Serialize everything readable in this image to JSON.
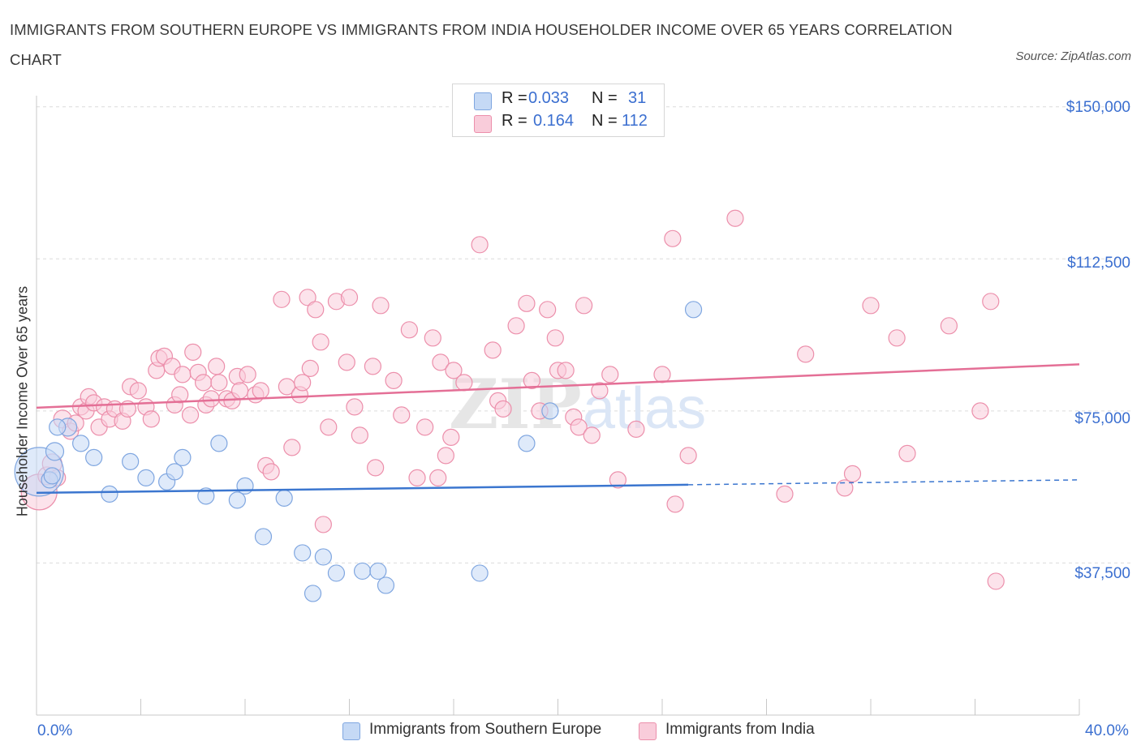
{
  "header": {
    "title": "IMMIGRANTS FROM SOUTHERN EUROPE VS IMMIGRANTS FROM INDIA HOUSEHOLDER INCOME OVER 65 YEARS CORRELATION CHART",
    "source": "Source: ZipAtlas.com"
  },
  "watermark": {
    "zip": "ZIP",
    "atlas": "atlas"
  },
  "legend_top": {
    "rows": [
      {
        "r_label": "R =",
        "r_value": "0.033",
        "n_label": "N =",
        "n_value": "31"
      },
      {
        "r_label": "R =",
        "r_value": "0.164",
        "n_label": "N =",
        "n_value": "112"
      }
    ]
  },
  "colors": {
    "series1_fill": "#c5d9f5",
    "series1_stroke": "#7fa6e0",
    "series1_line": "#3b76cf",
    "series2_fill": "#f9ccda",
    "series2_stroke": "#ec8fab",
    "series2_line": "#e46f96",
    "axis_label": "#3b6fd0",
    "grid": "#dcdcdc"
  },
  "chart_data": {
    "type": "scatter",
    "title": "IMMIGRANTS FROM SOUTHERN EUROPE VS IMMIGRANTS FROM INDIA HOUSEHOLDER INCOME OVER 65 YEARS CORRELATION CHART",
    "xlabel": "",
    "ylabel": "Householder Income Over 65 years",
    "xlim": [
      0,
      40
    ],
    "ylim": [
      0,
      150000
    ],
    "x_tick_labels": [
      "0.0%",
      "40.0%"
    ],
    "y_tick_labels": [
      "$150,000",
      "$112,500",
      "$75,000",
      "$37,500"
    ],
    "y_ticks": [
      150000,
      112500,
      75000,
      37500
    ],
    "grid": true,
    "legend_position": "bottom",
    "series": [
      {
        "name": "Immigrants from Southern Europe",
        "x": [
          0.1,
          0.7,
          1.2,
          1.7,
          2.2,
          2.8,
          3.6,
          4.2,
          5.0,
          5.3,
          5.6,
          6.5,
          7.0,
          7.7,
          8.0,
          8.7,
          9.5,
          10.2,
          10.6,
          11.0,
          11.5,
          12.5,
          13.1,
          13.4,
          17.0,
          18.8,
          19.7,
          25.2,
          0.8,
          0.5,
          0.6
        ],
        "y": [
          60000,
          65000,
          71000,
          67000,
          63500,
          54500,
          62500,
          58500,
          57500,
          60000,
          63500,
          54000,
          67000,
          53000,
          56500,
          44000,
          53500,
          40000,
          30000,
          39000,
          35000,
          35500,
          35500,
          32000,
          35000,
          67000,
          75000,
          100000,
          71000,
          58000,
          59000
        ],
        "sizes": [
          30,
          11,
          11,
          10,
          10,
          10,
          10,
          10,
          10,
          10,
          10,
          10,
          10,
          10,
          10,
          10,
          10,
          10,
          10,
          10,
          10,
          10,
          10,
          10,
          10,
          10,
          10,
          10,
          10,
          10,
          10
        ]
      },
      {
        "name": "Immigrants from India",
        "x": [
          0.1,
          0.4,
          0.6,
          0.8,
          1.0,
          1.3,
          1.5,
          1.7,
          1.9,
          2.0,
          2.2,
          2.4,
          2.6,
          2.8,
          3.0,
          3.3,
          3.5,
          3.6,
          3.9,
          4.2,
          4.4,
          4.6,
          4.7,
          4.9,
          5.2,
          5.3,
          5.5,
          5.6,
          5.9,
          6.0,
          6.2,
          6.4,
          6.5,
          6.7,
          6.9,
          7.0,
          7.3,
          7.5,
          7.7,
          7.8,
          8.1,
          8.4,
          8.6,
          8.8,
          9.0,
          9.4,
          9.6,
          9.8,
          10.1,
          10.2,
          10.4,
          10.5,
          10.7,
          10.9,
          11.0,
          11.2,
          11.5,
          11.9,
          12.0,
          12.2,
          12.4,
          12.9,
          13.0,
          13.2,
          13.7,
          14.0,
          14.3,
          14.6,
          14.9,
          15.2,
          15.4,
          15.5,
          15.7,
          15.9,
          16.0,
          16.4,
          17.0,
          17.5,
          17.7,
          17.9,
          18.4,
          18.8,
          19.0,
          19.3,
          19.6,
          19.9,
          20.0,
          20.3,
          20.6,
          20.8,
          21.0,
          21.3,
          21.6,
          22.0,
          22.3,
          23.0,
          24.0,
          24.4,
          24.5,
          25.0,
          26.8,
          28.7,
          29.5,
          31.0,
          31.3,
          32.0,
          33.0,
          33.4,
          35.0,
          36.2,
          36.6,
          36.8
        ],
        "y": [
          55000,
          59000,
          62000,
          58500,
          73000,
          70000,
          72000,
          76000,
          75000,
          78500,
          77000,
          71000,
          76000,
          73000,
          75500,
          72500,
          75500,
          81000,
          80000,
          76000,
          73000,
          85000,
          88000,
          88500,
          86000,
          76500,
          79000,
          84000,
          74000,
          89500,
          84500,
          82000,
          76500,
          78000,
          86000,
          82000,
          78000,
          77500,
          83500,
          80000,
          84000,
          79000,
          80000,
          61500,
          60000,
          102500,
          81000,
          66000,
          79000,
          82000,
          103000,
          85500,
          100000,
          92000,
          47000,
          71000,
          102000,
          87000,
          103000,
          76000,
          69000,
          86000,
          61000,
          101000,
          82500,
          74000,
          95000,
          58500,
          71000,
          93000,
          58500,
          87000,
          64000,
          68500,
          85000,
          82000,
          116000,
          90000,
          77500,
          75500,
          96000,
          101500,
          82500,
          75000,
          100000,
          93000,
          85000,
          85000,
          73500,
          71000,
          101000,
          69000,
          80000,
          84000,
          58000,
          70500,
          84000,
          117500,
          52000,
          64000,
          122500,
          54500,
          89000,
          56000,
          59500,
          101000,
          93000,
          64500,
          96000,
          75000,
          102000,
          33000
        ],
        "sizes": [
          22,
          11,
          12,
          10,
          11,
          10,
          10,
          10,
          10,
          10,
          10,
          10,
          10,
          10,
          10,
          10,
          10,
          10,
          10,
          10,
          10,
          10,
          10,
          10,
          10,
          10,
          10,
          10,
          10,
          10,
          10,
          10,
          10,
          10,
          10,
          10,
          10,
          10,
          10,
          10,
          10,
          10,
          10,
          10,
          10,
          10,
          10,
          10,
          10,
          10,
          10,
          10,
          10,
          10,
          10,
          10,
          10,
          10,
          10,
          10,
          10,
          10,
          10,
          10,
          10,
          10,
          10,
          10,
          10,
          10,
          10,
          10,
          10,
          10,
          10,
          10,
          10,
          10,
          10,
          10,
          10,
          10,
          10,
          10,
          10,
          10,
          10,
          10,
          10,
          10,
          10,
          10,
          10,
          10,
          10,
          10,
          10,
          10,
          10,
          10,
          10,
          10,
          10,
          10,
          10,
          10,
          10,
          10,
          10,
          10,
          10,
          10
        ]
      }
    ],
    "trendlines": [
      {
        "series": "Immigrants from Southern Europe",
        "x_start": 0,
        "y_start": 54800,
        "x_solid_end": 25.0,
        "x_end": 40,
        "y_end": 58000
      },
      {
        "series": "Immigrants from India",
        "x_start": 0,
        "y_start": 75800,
        "x_end": 40,
        "y_end": 86500
      }
    ]
  },
  "legend_bottom": {
    "items": [
      {
        "label": "Immigrants from Southern Europe"
      },
      {
        "label": "Immigrants from India"
      }
    ]
  }
}
